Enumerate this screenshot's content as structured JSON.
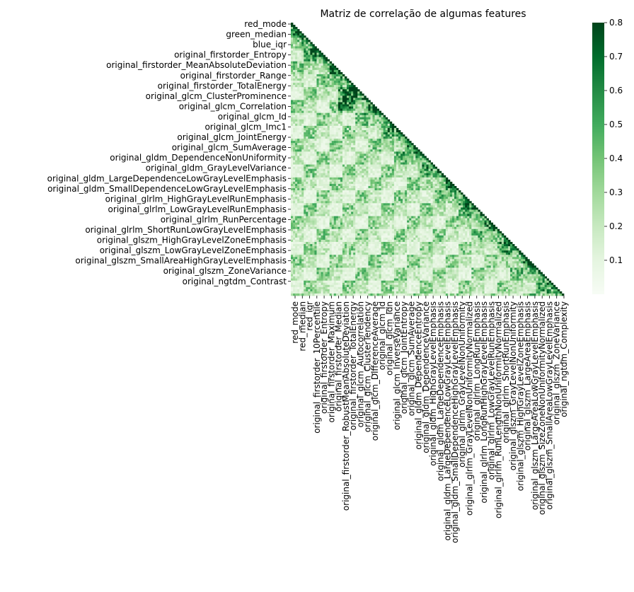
{
  "chart_data": {
    "type": "heatmap",
    "title": "Matriz de correlação de algumas features",
    "xlabel": "",
    "ylabel": "",
    "mask": "upper-triangle",
    "colormap": "Greens",
    "colors": {
      "low": "#f7fcf5",
      "high": "#00441b"
    },
    "colorbar": {
      "vmin": 0.0,
      "vmax": 0.8,
      "ticks": [
        0.1,
        0.2,
        0.3,
        0.4,
        0.5,
        0.6,
        0.7,
        0.8
      ]
    },
    "n_features": 127,
    "y_tick_labels": [
      {
        "index": 0,
        "label": "red_mode"
      },
      {
        "index": 4,
        "label": "green_median"
      },
      {
        "index": 8,
        "label": "blue_iqr"
      },
      {
        "index": 12,
        "label": "original_firstorder_Entropy"
      },
      {
        "index": 16,
        "label": "original_firstorder_MeanAbsoluteDeviation"
      },
      {
        "index": 20,
        "label": "original_firstorder_Range"
      },
      {
        "index": 24,
        "label": "original_firstorder_TotalEnergy"
      },
      {
        "index": 28,
        "label": "original_glcm_ClusterProminence"
      },
      {
        "index": 32,
        "label": "original_glcm_Correlation"
      },
      {
        "index": 36,
        "label": "original_glcm_Id"
      },
      {
        "index": 40,
        "label": "original_glcm_Imc1"
      },
      {
        "index": 44,
        "label": "original_glcm_JointEnergy"
      },
      {
        "index": 48,
        "label": "original_glcm_SumAverage"
      },
      {
        "index": 52,
        "label": "original_gldm_DependenceNonUniformity"
      },
      {
        "index": 56,
        "label": "original_gldm_GrayLevelVariance"
      },
      {
        "index": 60,
        "label": "original_gldm_LargeDependenceLowGrayLevelEmphasis"
      },
      {
        "index": 64,
        "label": "original_gldm_SmallDependenceLowGrayLevelEmphasis"
      },
      {
        "index": 68,
        "label": "original_glrlm_HighGrayLevelRunEmphasis"
      },
      {
        "index": 72,
        "label": "original_glrlm_LowGrayLevelRunEmphasis"
      },
      {
        "index": 76,
        "label": "original_glrlm_RunPercentage"
      },
      {
        "index": 80,
        "label": "original_glrlm_ShortRunLowGrayLevelEmphasis"
      },
      {
        "index": 84,
        "label": "original_glszm_HighGrayLevelZoneEmphasis"
      },
      {
        "index": 88,
        "label": "original_glszm_LowGrayLevelZoneEmphasis"
      },
      {
        "index": 92,
        "label": "original_glszm_SmallAreaHighGrayLevelEmphasis"
      },
      {
        "index": 96,
        "label": "original_glszm_ZoneVariance"
      },
      {
        "index": 100,
        "label": "original_ngtdm_Contrast"
      }
    ],
    "x_tick_labels": [
      {
        "index": 0,
        "label": "red_mode"
      },
      {
        "index": 2,
        "label": "red_median"
      },
      {
        "index": 4,
        "label": "red_iqr"
      },
      {
        "index": 6,
        "label": "original_firstorder_10Percentile"
      },
      {
        "index": 8,
        "label": "original_firstorder_Entropy"
      },
      {
        "index": 10,
        "label": "original_firstorder_Maximum"
      },
      {
        "index": 12,
        "label": "original_firstorder_Median"
      },
      {
        "index": 14,
        "label": "original_firstorder_RobustMeanAbsoluteDeviation"
      },
      {
        "index": 16,
        "label": "original_firstorder_TotalEnergy"
      },
      {
        "index": 18,
        "label": "original_glcm_Autocorrelation"
      },
      {
        "index": 20,
        "label": "original_glcm_ClusterTendency"
      },
      {
        "index": 22,
        "label": "original_glcm_DifferenceAverage"
      },
      {
        "index": 24,
        "label": "original_glcm_Id"
      },
      {
        "index": 26,
        "label": "original_glcm_Idn"
      },
      {
        "index": 28,
        "label": "original_glcm_InverseVariance"
      },
      {
        "index": 30,
        "label": "original_glcm_JointEntropy"
      },
      {
        "index": 32,
        "label": "original_glcm_SumAverage"
      },
      {
        "index": 34,
        "label": "original_gldm_DependenceEntropy"
      },
      {
        "index": 36,
        "label": "original_gldm_DependenceVariance"
      },
      {
        "index": 38,
        "label": "original_gldm_HighGrayLevelEmphasis"
      },
      {
        "index": 40,
        "label": "original_gldm_LargeDependenceEmphasis"
      },
      {
        "index": 42,
        "label": "original_gldm_LargeDependenceLowGrayLevelEmphasis"
      },
      {
        "index": 44,
        "label": "original_gldm_SmallDependenceHighGrayLevelEmphasis"
      },
      {
        "index": 46,
        "label": "original_glrlm_GrayLevelNonUniformity"
      },
      {
        "index": 48,
        "label": "original_glrlm_GrayLevelNonUniformityNormalized"
      },
      {
        "index": 50,
        "label": "original_glrlm_LongRunEmphasis"
      },
      {
        "index": 52,
        "label": "original_glrlm_LongRunHighGrayLevelEmphasis"
      },
      {
        "index": 54,
        "label": "original_glrlm_LowGrayLevelRunEmphasis"
      },
      {
        "index": 56,
        "label": "original_glrlm_RunLengthNonUniformityNormalized"
      },
      {
        "index": 58,
        "label": "original_glrlm_ShortRunEmphasis"
      },
      {
        "index": 60,
        "label": "original_glszm_GrayLevelNonUniformity"
      },
      {
        "index": 62,
        "label": "original_glszm_HighGrayLevelZoneEmphasis"
      },
      {
        "index": 64,
        "label": "original_glszm_LargeAreaEmphasis"
      },
      {
        "index": 66,
        "label": "original_glszm_LargeAreaLowGrayLevelEmphasis"
      },
      {
        "index": 68,
        "label": "original_glszm_SizeZoneNonUniformityNormalized"
      },
      {
        "index": 70,
        "label": "original_glszm_SmallAreaLowGrayLevelEmphasis"
      },
      {
        "index": 72,
        "label": "original_glszm_ZoneVariance"
      },
      {
        "index": 74,
        "label": "original_ngtdm_Complexity"
      }
    ],
    "diagonal_value": 0.8,
    "values_note": ""
  }
}
